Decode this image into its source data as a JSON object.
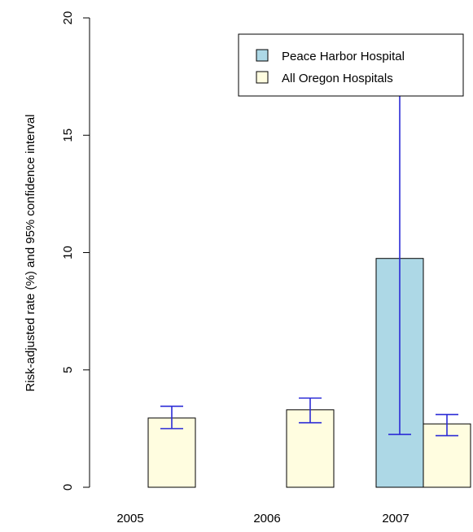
{
  "chart_data": {
    "type": "bar",
    "categories": [
      "2005",
      "2006",
      "2007"
    ],
    "ylabel": "Risk-adjusted rate (%) and 95% confidence interval",
    "xlabel": "",
    "ylim": [
      0,
      20
    ],
    "yticks": [
      0,
      5,
      10,
      15,
      20
    ],
    "legend_position": "top-right",
    "series": [
      {
        "name": "Peace Harbor Hospital",
        "color": "#add8e6",
        "values": [
          null,
          null,
          9.75
        ],
        "ci_low": [
          null,
          null,
          2.25
        ],
        "ci_high": [
          null,
          null,
          17.2
        ]
      },
      {
        "name": "All Oregon Hospitals",
        "color": "#fffde0",
        "values": [
          2.95,
          3.3,
          2.7
        ],
        "ci_low": [
          2.5,
          2.75,
          2.2
        ],
        "ci_high": [
          3.45,
          3.8,
          3.1
        ]
      }
    ],
    "error_bar_color": "#2b2bd6"
  }
}
